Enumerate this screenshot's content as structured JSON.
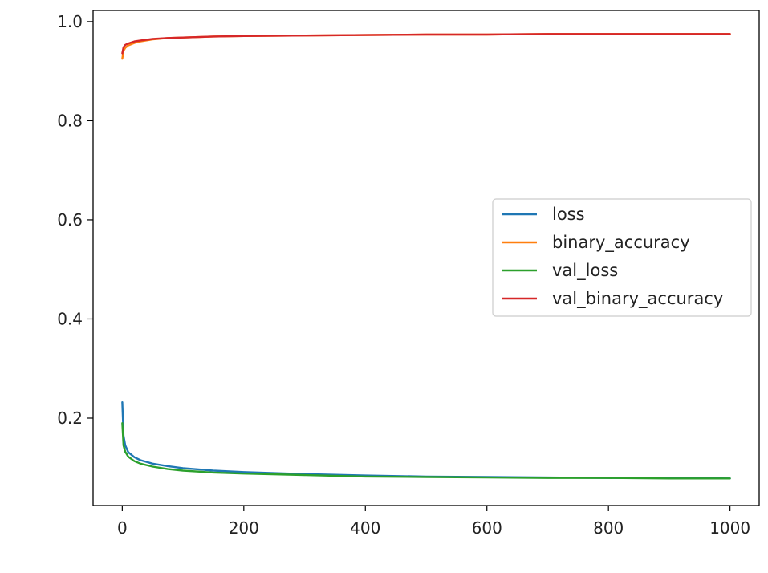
{
  "chart_data": {
    "type": "line",
    "title": "",
    "xlabel": "",
    "ylabel": "",
    "xlim": [
      -48,
      1048
    ],
    "ylim": [
      0.0235,
      1.0225
    ],
    "xticks": [
      0,
      200,
      400,
      600,
      800,
      1000
    ],
    "xtick_labels": [
      "0",
      "200",
      "400",
      "600",
      "800",
      "1000"
    ],
    "yticks": [
      0.2,
      0.4,
      0.6,
      0.8,
      1.0
    ],
    "ytick_labels": [
      "0.2",
      "0.4",
      "0.6",
      "0.8",
      "1.0"
    ],
    "grid": false,
    "legend_placement": "center-right",
    "series": [
      {
        "name": "loss",
        "color": "#1f77b4",
        "x": [
          0,
          2,
          5,
          10,
          20,
          30,
          50,
          75,
          100,
          150,
          200,
          300,
          400,
          500,
          600,
          700,
          800,
          900,
          1000
        ],
        "values": [
          0.232,
          0.165,
          0.145,
          0.131,
          0.121,
          0.115,
          0.108,
          0.103,
          0.099,
          0.094,
          0.091,
          0.087,
          0.084,
          0.082,
          0.081,
          0.08,
          0.079,
          0.079,
          0.078
        ]
      },
      {
        "name": "binary_accuracy",
        "color": "#ff7f0e",
        "x": [
          0,
          2,
          5,
          10,
          20,
          30,
          50,
          75,
          100,
          150,
          200,
          300,
          400,
          500,
          600,
          700,
          800,
          900,
          1000
        ],
        "values": [
          0.925,
          0.941,
          0.947,
          0.952,
          0.957,
          0.96,
          0.964,
          0.967,
          0.968,
          0.97,
          0.971,
          0.972,
          0.973,
          0.974,
          0.974,
          0.975,
          0.975,
          0.975,
          0.975
        ]
      },
      {
        "name": "val_loss",
        "color": "#2ca02c",
        "x": [
          0,
          2,
          5,
          10,
          20,
          30,
          50,
          75,
          100,
          150,
          200,
          300,
          400,
          500,
          600,
          700,
          800,
          900,
          1000
        ],
        "values": [
          0.19,
          0.145,
          0.132,
          0.122,
          0.113,
          0.108,
          0.102,
          0.097,
          0.094,
          0.09,
          0.088,
          0.085,
          0.082,
          0.081,
          0.08,
          0.079,
          0.079,
          0.078,
          0.078
        ]
      },
      {
        "name": "val_binary_accuracy",
        "color": "#d62728",
        "x": [
          0,
          2,
          5,
          10,
          20,
          30,
          50,
          75,
          100,
          150,
          200,
          300,
          400,
          500,
          600,
          700,
          800,
          900,
          1000
        ],
        "values": [
          0.936,
          0.948,
          0.953,
          0.956,
          0.96,
          0.962,
          0.965,
          0.967,
          0.968,
          0.97,
          0.971,
          0.972,
          0.973,
          0.974,
          0.974,
          0.975,
          0.975,
          0.975,
          0.975
        ]
      }
    ]
  }
}
